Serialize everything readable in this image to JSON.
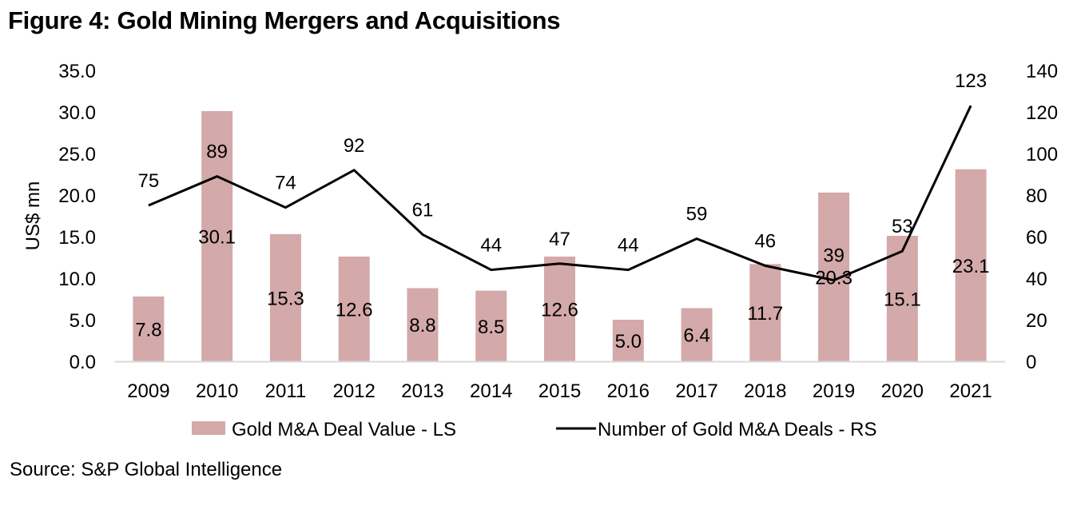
{
  "figure": {
    "title": "Figure 4: Gold Mining Mergers and Acquisitions",
    "source": "Source: S&P Global Intelligence"
  },
  "colors": {
    "bar": "#D4A9A9",
    "line": "#000000",
    "axis": "#D9D9D9"
  },
  "chart_data": {
    "type": "bar",
    "title": "Figure 4: Gold Mining Mergers and Acquisitions",
    "xlabel": "",
    "ylabel": "US$ mn",
    "y2label": "",
    "categories": [
      "2009",
      "2010",
      "2011",
      "2012",
      "2013",
      "2014",
      "2015",
      "2016",
      "2017",
      "2018",
      "2019",
      "2020",
      "2021"
    ],
    "series": [
      {
        "name": "Gold M&A Deal Value - LS",
        "type": "bar",
        "axis": "left",
        "values": [
          7.8,
          30.1,
          15.3,
          12.6,
          8.8,
          8.5,
          12.6,
          5.0,
          6.4,
          11.7,
          20.3,
          15.1,
          23.1
        ],
        "labels": [
          "7.8",
          "30.1",
          "15.3",
          "12.6",
          "8.8",
          "8.5",
          "12.6",
          "5.0",
          "6.4",
          "11.7",
          "20.3",
          "15.1",
          "23.1"
        ]
      },
      {
        "name": "Number of Gold M&A Deals - RS",
        "type": "line",
        "axis": "right",
        "values": [
          75,
          89,
          74,
          92,
          61,
          44,
          47,
          44,
          59,
          46,
          39,
          53,
          123
        ],
        "labels": [
          "75",
          "89",
          "74",
          "92",
          "61",
          "44",
          "47",
          "44",
          "59",
          "46",
          "39",
          "53",
          "123"
        ]
      }
    ],
    "ylim": [
      0,
      35
    ],
    "y2lim": [
      0,
      140
    ],
    "yticks": [
      "0.0",
      "5.0",
      "10.0",
      "15.0",
      "20.0",
      "25.0",
      "30.0",
      "35.0"
    ],
    "y2ticks": [
      "0",
      "20",
      "40",
      "60",
      "80",
      "100",
      "120",
      "140"
    ],
    "grid": false,
    "legend_position": "bottom"
  }
}
